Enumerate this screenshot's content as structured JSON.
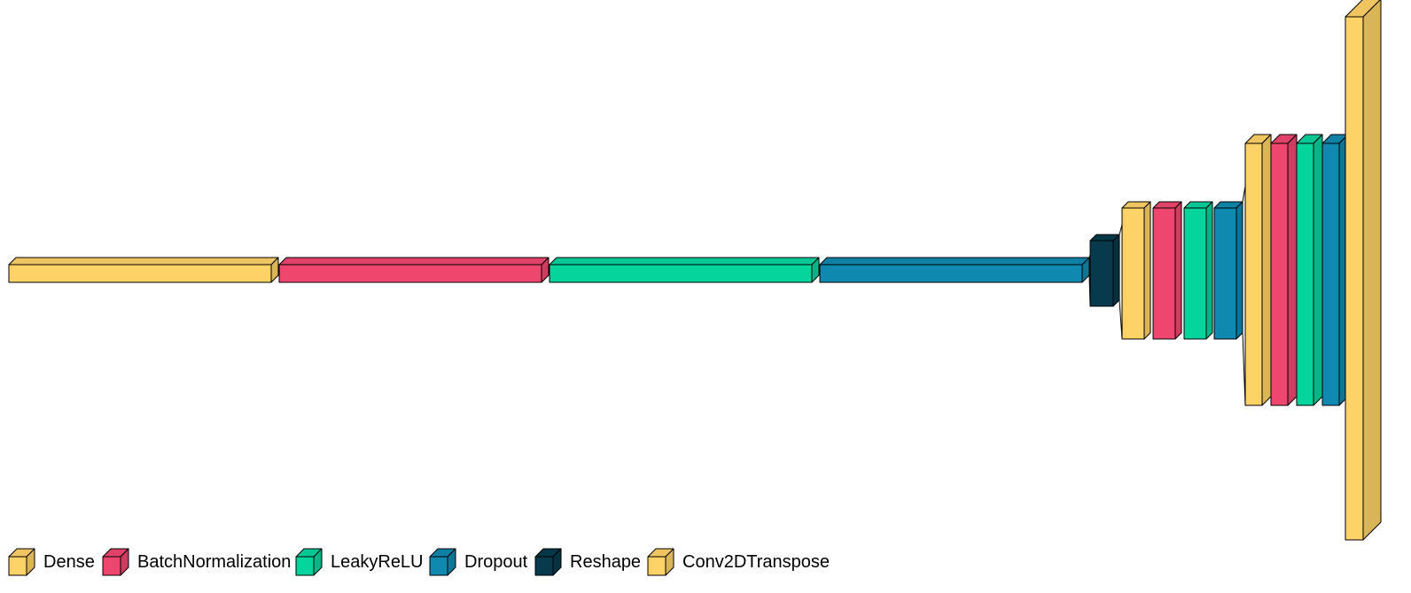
{
  "diagram": {
    "type": "layered-network-visualization",
    "colors": {
      "dense": "#fdd266",
      "batchnorm": "#ef4670",
      "leakyrelu": "#05d49c",
      "dropout": "#0f89b0",
      "reshape": "#063a4c",
      "conv2dtranspose": "#fdd266"
    },
    "layers": [
      {
        "kind": "dense"
      },
      {
        "kind": "batchnorm"
      },
      {
        "kind": "leakyrelu"
      },
      {
        "kind": "dropout"
      },
      {
        "kind": "reshape"
      },
      {
        "kind": "conv2dtranspose"
      },
      {
        "kind": "batchnorm"
      },
      {
        "kind": "leakyrelu"
      },
      {
        "kind": "dropout"
      },
      {
        "kind": "conv2dtranspose"
      },
      {
        "kind": "batchnorm"
      },
      {
        "kind": "leakyrelu"
      },
      {
        "kind": "dropout"
      },
      {
        "kind": "conv2dtranspose"
      }
    ]
  },
  "legend": {
    "items": [
      {
        "label": "Dense",
        "kind": "dense"
      },
      {
        "label": "BatchNormalization",
        "kind": "batchnorm"
      },
      {
        "label": "LeakyReLU",
        "kind": "leakyrelu"
      },
      {
        "label": "Dropout",
        "kind": "dropout"
      },
      {
        "label": "Reshape",
        "kind": "reshape"
      },
      {
        "label": "Conv2DTranspose",
        "kind": "conv2dtranspose"
      }
    ]
  }
}
